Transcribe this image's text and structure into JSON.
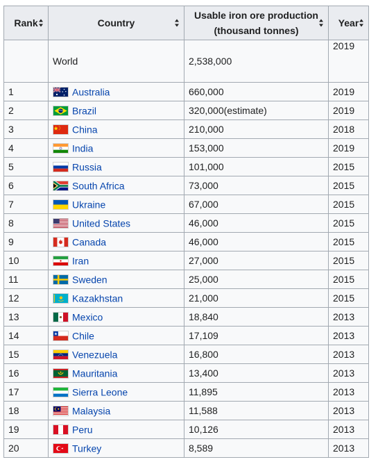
{
  "table": {
    "headers": {
      "rank": "Rank",
      "country": "Country",
      "production_line1": "Usable iron ore production",
      "production_line2": "(thousand tonnes)",
      "year": "Year"
    },
    "world": {
      "name": "World",
      "production": "2,538,000",
      "year": "2019"
    },
    "rows": [
      {
        "rank": "1",
        "country": "Australia",
        "flag": "australia-flag-icon",
        "production": "660,000",
        "year": "2019"
      },
      {
        "rank": "2",
        "country": "Brazil",
        "flag": "brazil-flag-icon",
        "production": "320,000(estimate)",
        "year": "2019"
      },
      {
        "rank": "3",
        "country": "China",
        "flag": "china-flag-icon",
        "production": "210,000",
        "year": "2018"
      },
      {
        "rank": "4",
        "country": "India",
        "flag": "india-flag-icon",
        "production": "153,000",
        "year": "2019"
      },
      {
        "rank": "5",
        "country": "Russia",
        "flag": "russia-flag-icon",
        "production": "101,000",
        "year": "2015"
      },
      {
        "rank": "6",
        "country": "South Africa",
        "flag": "south-africa-flag-icon",
        "production": "73,000",
        "year": "2015"
      },
      {
        "rank": "7",
        "country": "Ukraine",
        "flag": "ukraine-flag-icon",
        "production": "67,000",
        "year": "2015"
      },
      {
        "rank": "8",
        "country": "United States",
        "flag": "united-states-flag-icon",
        "production": "46,000",
        "year": "2015"
      },
      {
        "rank": "9",
        "country": "Canada",
        "flag": "canada-flag-icon",
        "production": "46,000",
        "year": "2015"
      },
      {
        "rank": "10",
        "country": "Iran",
        "flag": "iran-flag-icon",
        "production": "27,000",
        "year": "2015"
      },
      {
        "rank": "11",
        "country": "Sweden",
        "flag": "sweden-flag-icon",
        "production": "25,000",
        "year": "2015"
      },
      {
        "rank": "12",
        "country": "Kazakhstan",
        "flag": "kazakhstan-flag-icon",
        "production": "21,000",
        "year": "2015"
      },
      {
        "rank": "13",
        "country": "Mexico",
        "flag": "mexico-flag-icon",
        "production": "18,840",
        "year": "2013"
      },
      {
        "rank": "14",
        "country": "Chile",
        "flag": "chile-flag-icon",
        "production": "17,109",
        "year": "2013"
      },
      {
        "rank": "15",
        "country": "Venezuela",
        "flag": "venezuela-flag-icon",
        "production": "16,800",
        "year": "2013"
      },
      {
        "rank": "16",
        "country": "Mauritania",
        "flag": "mauritania-flag-icon",
        "production": "13,400",
        "year": "2013"
      },
      {
        "rank": "17",
        "country": "Sierra Leone",
        "flag": "sierra-leone-flag-icon",
        "production": "11,895",
        "year": "2013"
      },
      {
        "rank": "18",
        "country": "Malaysia",
        "flag": "malaysia-flag-icon",
        "production": "11,588",
        "year": "2013"
      },
      {
        "rank": "19",
        "country": "Peru",
        "flag": "peru-flag-icon",
        "production": "10,126",
        "year": "2013"
      },
      {
        "rank": "20",
        "country": "Turkey",
        "flag": "turkey-flag-icon",
        "production": "8,589",
        "year": "2013"
      }
    ]
  },
  "colors": {
    "link": "#0645ad",
    "header_bg": "#eaecf0",
    "cell_bg": "#f8f9fa",
    "border": "#a2a9b1"
  }
}
